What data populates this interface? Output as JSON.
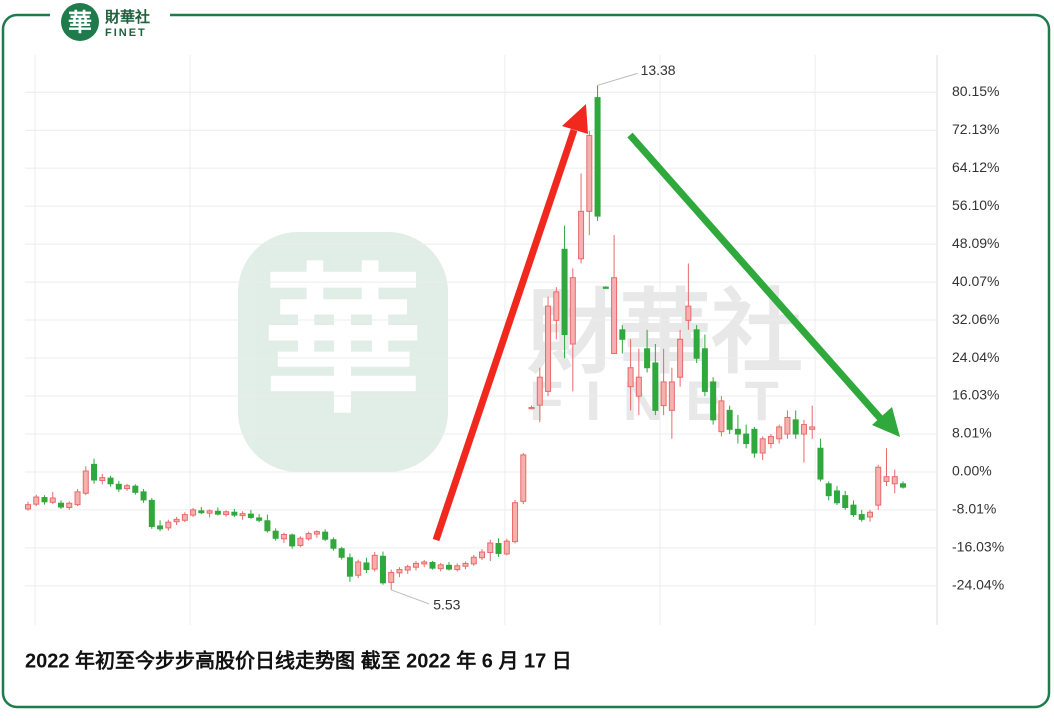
{
  "logo": {
    "mark": "華",
    "name": "財華社",
    "latin": "FINET"
  },
  "watermark": {
    "name": "財華社",
    "latin": "FINET"
  },
  "caption": "2022 年初至今步步高股价日线走势图  截至 2022 年 6 月 17 日",
  "chart_data": {
    "type": "candlestick",
    "up_color": "#e86a6a",
    "down_color": "#2fa83c",
    "grid": true,
    "ylim": [
      -32.3,
      88.0
    ],
    "yticks": [
      {
        "value": 80.15,
        "label": "80.15%"
      },
      {
        "value": 72.13,
        "label": "72.13%"
      },
      {
        "value": 64.12,
        "label": "64.12%"
      },
      {
        "value": 56.1,
        "label": "56.10%"
      },
      {
        "value": 48.09,
        "label": "48.09%"
      },
      {
        "value": 40.07,
        "label": "40.07%"
      },
      {
        "value": 32.06,
        "label": "32.06%"
      },
      {
        "value": 24.04,
        "label": "24.04%"
      },
      {
        "value": 16.03,
        "label": "16.03%"
      },
      {
        "value": 8.01,
        "label": "8.01%"
      },
      {
        "value": 0,
        "label": "0.00%"
      },
      {
        "value": -8.01,
        "label": "-8.01%"
      },
      {
        "value": -16.03,
        "label": "-16.03%"
      },
      {
        "value": -24.04,
        "label": "-24.04%"
      }
    ],
    "annotations": {
      "max_label": "13.38",
      "min_label": "5.53"
    },
    "open": [
      -7.8,
      -6.8,
      -5.4,
      -6.4,
      -6.6,
      -7.5,
      -6.9,
      -4.5,
      1.6,
      -1.8,
      -1.3,
      -2.6,
      -3.5,
      -3.0,
      -4.2,
      -6.0,
      -11.4,
      -11.8,
      -10.5,
      -10.2,
      -9.1,
      -8.2,
      -8.7,
      -8.3,
      -9.0,
      -8.5,
      -9.2,
      -8.9,
      -9.7,
      -10.3,
      -12.5,
      -14.1,
      -13.3,
      -15.5,
      -14.1,
      -13.1,
      -12.7,
      -14.3,
      -16.2,
      -18.1,
      -21.8,
      -19.2,
      -20.5,
      -17.8,
      -23.3,
      -21.3,
      -20.7,
      -20.1,
      -19.4,
      -19.1,
      -20.4,
      -19.7,
      -20.6,
      -19.9,
      -19.4,
      -18.1,
      -17.0,
      -15.1,
      -17.3,
      -14.7,
      -6.2,
      13.6,
      14.1,
      17.0,
      32.0,
      47.0,
      27.0,
      45.0,
      55.0,
      79.0,
      39.0,
      25.0,
      30.0,
      18.0,
      16.0,
      26.0,
      23.0,
      14.0,
      13.0,
      20.0,
      32.0,
      30.0,
      26.0,
      19.0,
      8.5,
      13.0,
      9.0,
      8.0,
      9.0,
      4.0,
      6.0,
      7.0,
      8.0,
      11.0,
      8.0,
      9.0,
      5.0,
      -2.5,
      -4.0,
      -5.0,
      -7.0,
      -9.0,
      -9.5,
      -7.0,
      -2.0,
      -2.5,
      -2.5
    ],
    "high": [
      -6.3,
      -4.8,
      -4.9,
      -4.2,
      -6.0,
      -6.2,
      -3.6,
      1.2,
      2.8,
      -0.4,
      -0.8,
      -1.9,
      -2.5,
      -2.6,
      -3.6,
      -5.5,
      -10.2,
      -10.1,
      -9.5,
      -8.5,
      -7.6,
      -7.4,
      -7.9,
      -7.5,
      -8.1,
      -7.8,
      -8.3,
      -8.0,
      -8.9,
      -9.0,
      -11.9,
      -12.8,
      -13.0,
      -13.6,
      -12.6,
      -12.3,
      -12.1,
      -13.8,
      -15.8,
      -17.2,
      -18.5,
      -18.1,
      -16.9,
      -16.8,
      -20.6,
      -20.1,
      -19.6,
      -18.8,
      -18.6,
      -18.8,
      -19.2,
      -19.0,
      -19.3,
      -18.9,
      -17.5,
      -16.3,
      -14.3,
      -14.0,
      -14.1,
      -5.9,
      4.0,
      14.0,
      22.0,
      37.0,
      39.0,
      52.0,
      43.0,
      63.0,
      72.0,
      81.6,
      39.2,
      50.0,
      31.0,
      28.0,
      26.0,
      30.0,
      27.0,
      26.0,
      22.0,
      30.0,
      44.0,
      31.0,
      29.0,
      20.0,
      16.0,
      14.0,
      12.0,
      10.0,
      9.5,
      7.5,
      8.0,
      10.0,
      13.0,
      13.0,
      11.0,
      14.0,
      7.0,
      -2.0,
      -3.0,
      -4.0,
      -6.0,
      -8.0,
      -8.0,
      1.5,
      5.0,
      0.5,
      -2.0
    ],
    "low": [
      -8.2,
      -7.2,
      -6.9,
      -6.8,
      -7.8,
      -8.0,
      -7.2,
      -4.9,
      -2.5,
      -2.6,
      -3.1,
      -4.2,
      -4.0,
      -4.8,
      -6.5,
      -12.0,
      -12.5,
      -12.4,
      -11.2,
      -10.6,
      -9.5,
      -8.9,
      -9.6,
      -9.2,
      -9.4,
      -9.5,
      -10.1,
      -9.9,
      -10.6,
      -12.8,
      -14.5,
      -15.0,
      -16.2,
      -15.9,
      -14.5,
      -13.9,
      -14.6,
      -16.6,
      -18.5,
      -23.2,
      -22.4,
      -21.3,
      -21.0,
      -23.8,
      -24.9,
      -22.2,
      -21.5,
      -20.8,
      -20.1,
      -20.6,
      -21.0,
      -20.8,
      -21.0,
      -20.5,
      -19.8,
      -18.6,
      -18.8,
      -17.9,
      -17.6,
      -15.1,
      -6.8,
      13.2,
      10.5,
      16.0,
      28.0,
      24.0,
      17.0,
      44.0,
      50.0,
      53.0,
      38.7,
      25.0,
      25.0,
      13.0,
      12.0,
      21.0,
      12.0,
      12.0,
      7.0,
      18.0,
      30.0,
      23.0,
      16.0,
      10.0,
      7.5,
      8.0,
      6.0,
      5.0,
      3.0,
      2.5,
      5.0,
      6.0,
      7.0,
      7.0,
      2.0,
      7.0,
      -2.0,
      -6.0,
      -7.0,
      -8.0,
      -9.5,
      -10.5,
      -10.5,
      -8.0,
      -3.0,
      -4.5,
      -3.5
    ],
    "close": [
      -6.9,
      -5.3,
      -6.3,
      -5.5,
      -7.4,
      -6.6,
      -4.2,
      0.2,
      -1.7,
      -1.2,
      -2.5,
      -3.6,
      -2.9,
      -4.3,
      -5.9,
      -11.5,
      -12.0,
      -10.6,
      -10.0,
      -9.0,
      -8.0,
      -8.6,
      -8.2,
      -8.9,
      -8.4,
      -9.1,
      -8.8,
      -9.6,
      -10.2,
      -12.4,
      -14.0,
      -13.2,
      -15.6,
      -14.0,
      -13.0,
      -12.6,
      -14.2,
      -16.1,
      -18.0,
      -22.0,
      -19.0,
      -20.6,
      -17.6,
      -23.4,
      -21.2,
      -20.6,
      -20.0,
      -19.3,
      -19.0,
      -20.3,
      -19.6,
      -20.5,
      -19.8,
      -19.3,
      -18.0,
      -16.9,
      -15.0,
      -17.2,
      -14.6,
      -6.5,
      3.6,
      13.6,
      20.0,
      35.0,
      38.0,
      29.0,
      41.0,
      55.0,
      71.0,
      54.0,
      38.8,
      41.0,
      28.0,
      22.0,
      20.0,
      22.0,
      13.0,
      19.0,
      19.0,
      28.0,
      35.0,
      24.0,
      17.0,
      11.0,
      15.0,
      9.0,
      8.0,
      6.0,
      4.0,
      7.0,
      7.5,
      9.5,
      11.5,
      8.0,
      10.0,
      9.5,
      -1.5,
      -5.0,
      -6.5,
      -7.5,
      -9.0,
      -10.0,
      -8.5,
      1.0,
      -1.0,
      -1.0,
      -3.2
    ]
  }
}
